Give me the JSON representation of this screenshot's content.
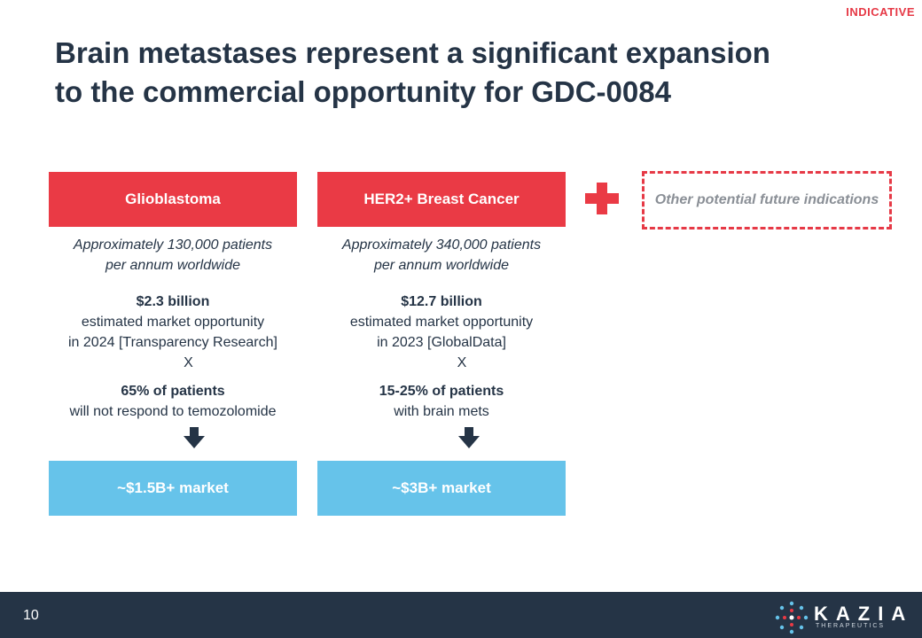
{
  "tag": "INDICATIVE",
  "title": [
    "Brain metastases represent a significant expansion",
    "to the commercial opportunity for GDC-0084"
  ],
  "columns": [
    {
      "header": "Glioblastoma",
      "patients": [
        "Approximately 130,000 patients",
        "per annum worldwide"
      ],
      "market_value": "$2.3 billion",
      "market_desc": [
        "estimated market opportunity",
        "in 2024 [Transparency Research]"
      ],
      "multiplier": "X",
      "share": "65% of patients",
      "share_desc": "will not respond to temozolomide",
      "result": "~$1.5B+ market"
    },
    {
      "header": "HER2+ Breast Cancer",
      "patients": [
        "Approximately 340,000 patients",
        "per annum worldwide"
      ],
      "market_value": "$12.7 billion",
      "market_desc": [
        "estimated market opportunity",
        "in 2023 [GlobalData]"
      ],
      "multiplier": "X",
      "share": "15-25% of patients",
      "share_desc": "with brain mets",
      "result": "~$3B+ market"
    }
  ],
  "other": "Other potential future indications",
  "footer": {
    "page": "10",
    "logo": "KAZIA",
    "logo_sub": "THERAPEUTICS"
  }
}
